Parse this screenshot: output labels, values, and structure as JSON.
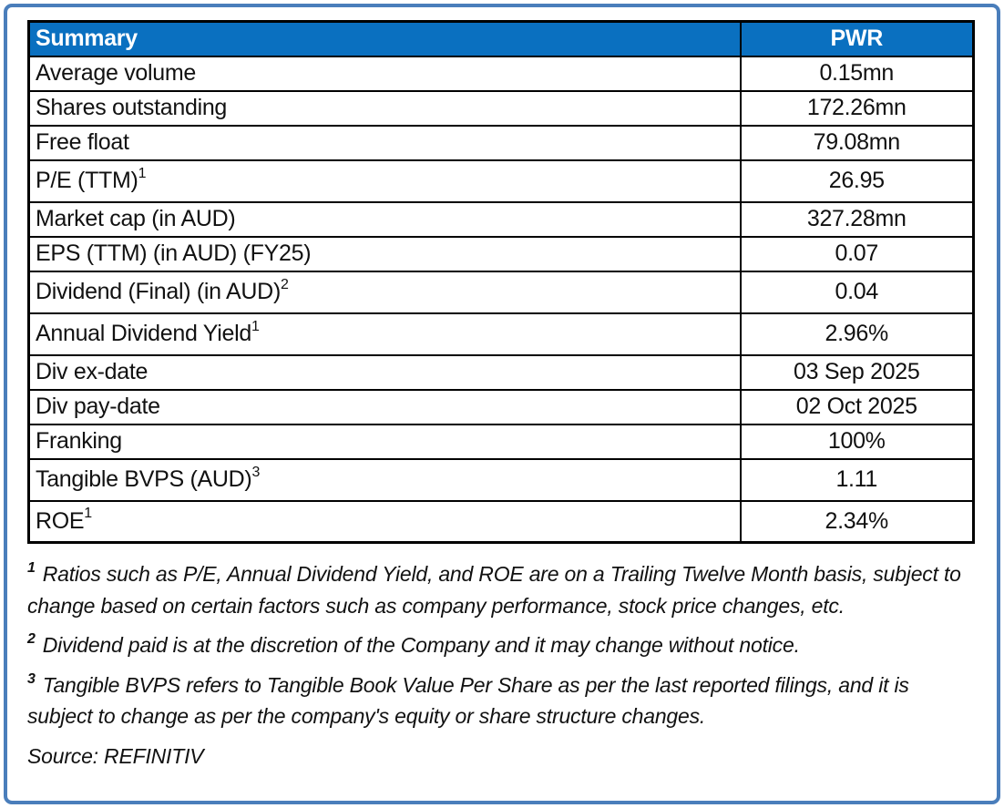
{
  "frame": {
    "border_color": "#4a7ebb"
  },
  "table": {
    "header": {
      "label": "Summary",
      "value": "PWR",
      "bg_color": "#0a70c0",
      "text_color": "#ffffff"
    },
    "rows": [
      {
        "label": "Average volume",
        "sup": "",
        "value": "0.15mn"
      },
      {
        "label": "Shares outstanding",
        "sup": "",
        "value": "172.26mn"
      },
      {
        "label": "Free float",
        "sup": "",
        "value": "79.08mn"
      },
      {
        "label": "P/E (TTM)",
        "sup": "1",
        "value": "26.95"
      },
      {
        "label": "Market cap (in AUD)",
        "sup": "",
        "value": "327.28mn"
      },
      {
        "label": "EPS (TTM) (in AUD) (FY25)",
        "sup": "",
        "value": "0.07"
      },
      {
        "label": "Dividend (Final) (in AUD)",
        "sup": "2",
        "value": "0.04"
      },
      {
        "label": "Annual Dividend Yield",
        "sup": "1",
        "value": "2.96%"
      },
      {
        "label": "Div ex-date",
        "sup": "",
        "value": "03 Sep 2025"
      },
      {
        "label": "Div pay-date",
        "sup": "",
        "value": "02 Oct 2025"
      },
      {
        "label": "Franking",
        "sup": "",
        "value": "100%"
      },
      {
        "label": "Tangible BVPS (AUD)",
        "sup": "3",
        "value": "1.11"
      },
      {
        "label": "ROE",
        "sup": "1",
        "value": "2.34%"
      }
    ]
  },
  "footnotes": [
    {
      "sup": "1",
      "text": "Ratios such as P/E,  Annual Dividend Yield, and ROE are on a Trailing Twelve Month basis, subject to change based on certain factors such as company performance, stock price changes, etc."
    },
    {
      "sup": "2",
      "text": "Dividend paid is at the discretion of the Company and it may change without notice."
    },
    {
      "sup": "3",
      "text": "Tangible BVPS refers to Tangible Book Value Per Share as per the last reported filings, and it is subject to change as per the company's equity or share structure changes."
    }
  ],
  "source": "Source: REFINITIV"
}
